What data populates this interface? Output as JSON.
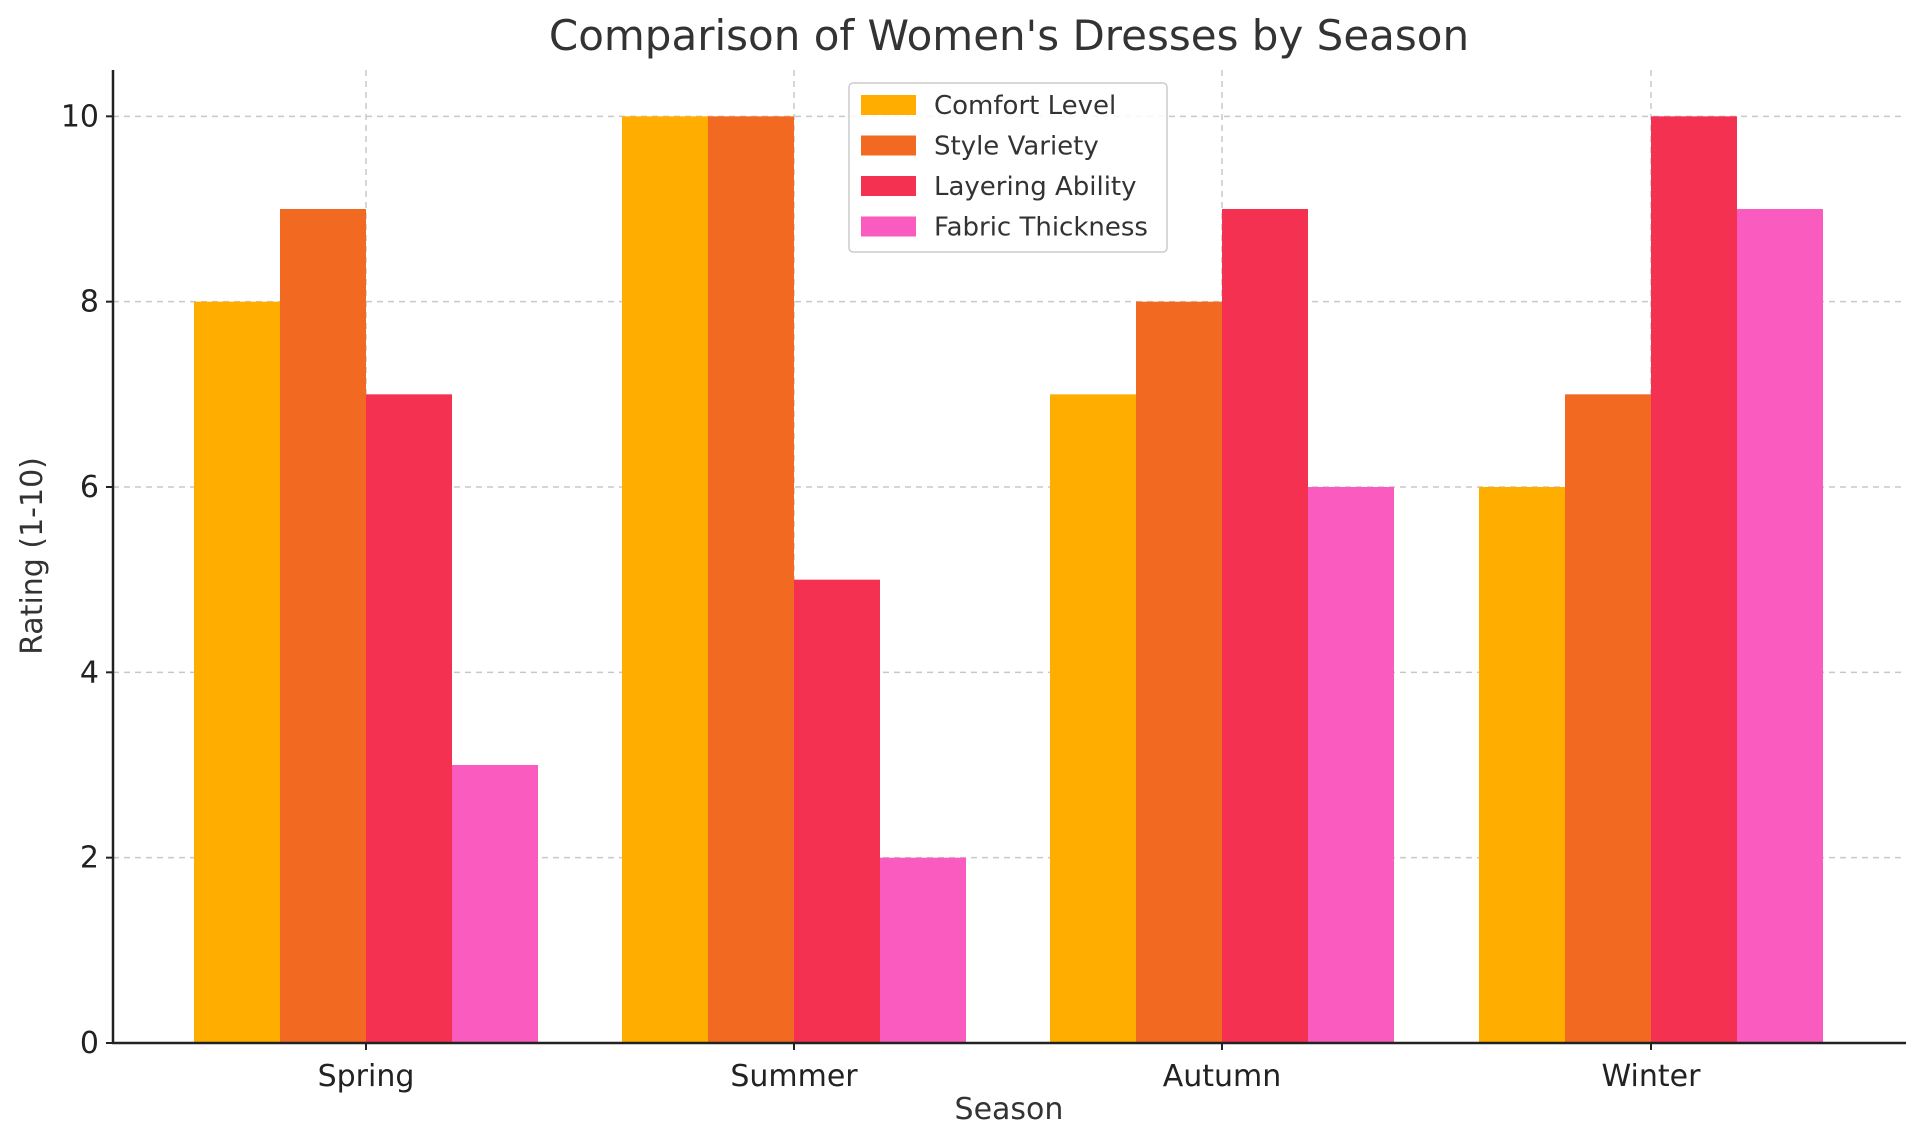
{
  "chart_data": {
    "type": "bar",
    "title": "Comparison of Women's Dresses by Season",
    "xlabel": "Season",
    "ylabel": "Rating (1-10)",
    "categories": [
      "Spring",
      "Summer",
      "Autumn",
      "Winter"
    ],
    "ylim": [
      0,
      10.5
    ],
    "yticks": [
      0,
      2,
      4,
      6,
      8,
      10
    ],
    "grid": true,
    "legend_position": "top-center",
    "series": [
      {
        "name": "Comfort Level",
        "color": "#FFAE00",
        "values": [
          8,
          10,
          7,
          6
        ]
      },
      {
        "name": "Style Variety",
        "color": "#F26A22",
        "values": [
          9,
          10,
          8,
          7
        ]
      },
      {
        "name": "Layering Ability",
        "color": "#F43150",
        "values": [
          7,
          5,
          9,
          10
        ]
      },
      {
        "name": "Fabric Thickness",
        "color": "#F95BBE",
        "values": [
          3,
          2,
          6,
          9
        ]
      }
    ]
  }
}
